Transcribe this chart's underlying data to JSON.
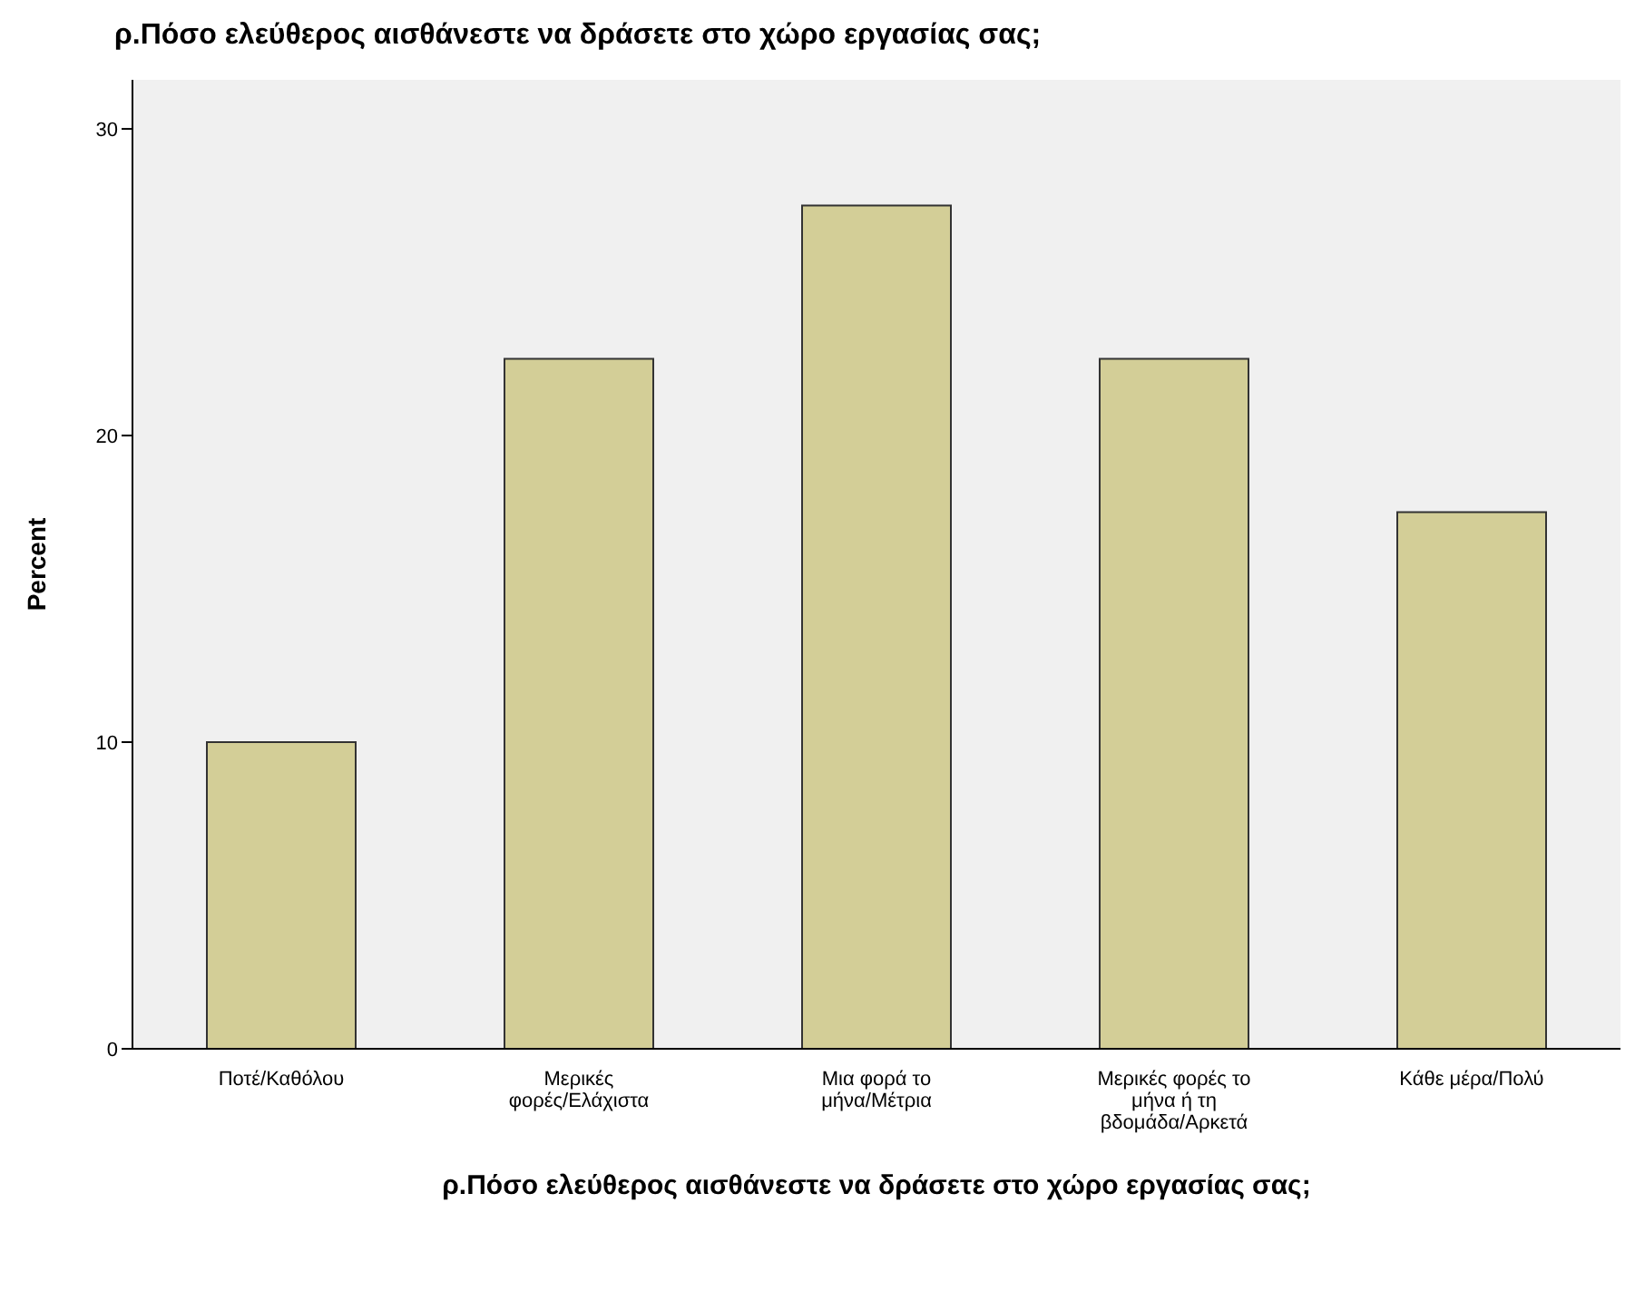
{
  "chart_data": {
    "type": "bar",
    "title": "ρ.Πόσο ελεύθερος αισθάνεστε να δράσετε στο χώρο εργασίας σας;",
    "xlabel": "ρ.Πόσο ελεύθερος αισθάνεστε να δράσετε στο χώρο εργασίας σας;",
    "ylabel": "Percent",
    "categories": [
      "Ποτέ/Καθόλου",
      "Μερικές φορές/Ελάχιστα",
      "Μια φορά το μήνα/Μέτρια",
      "Μερικές φορές το μήνα ή τη βδομάδα/Αρκετά",
      "Κάθε μέρα/Πολύ"
    ],
    "values": [
      10,
      22.5,
      27.5,
      22.5,
      17.5
    ],
    "color": "#d3ce97",
    "ylim": [
      0,
      31.6
    ],
    "yticks": [
      0,
      10,
      20,
      30
    ],
    "grid": false
  }
}
